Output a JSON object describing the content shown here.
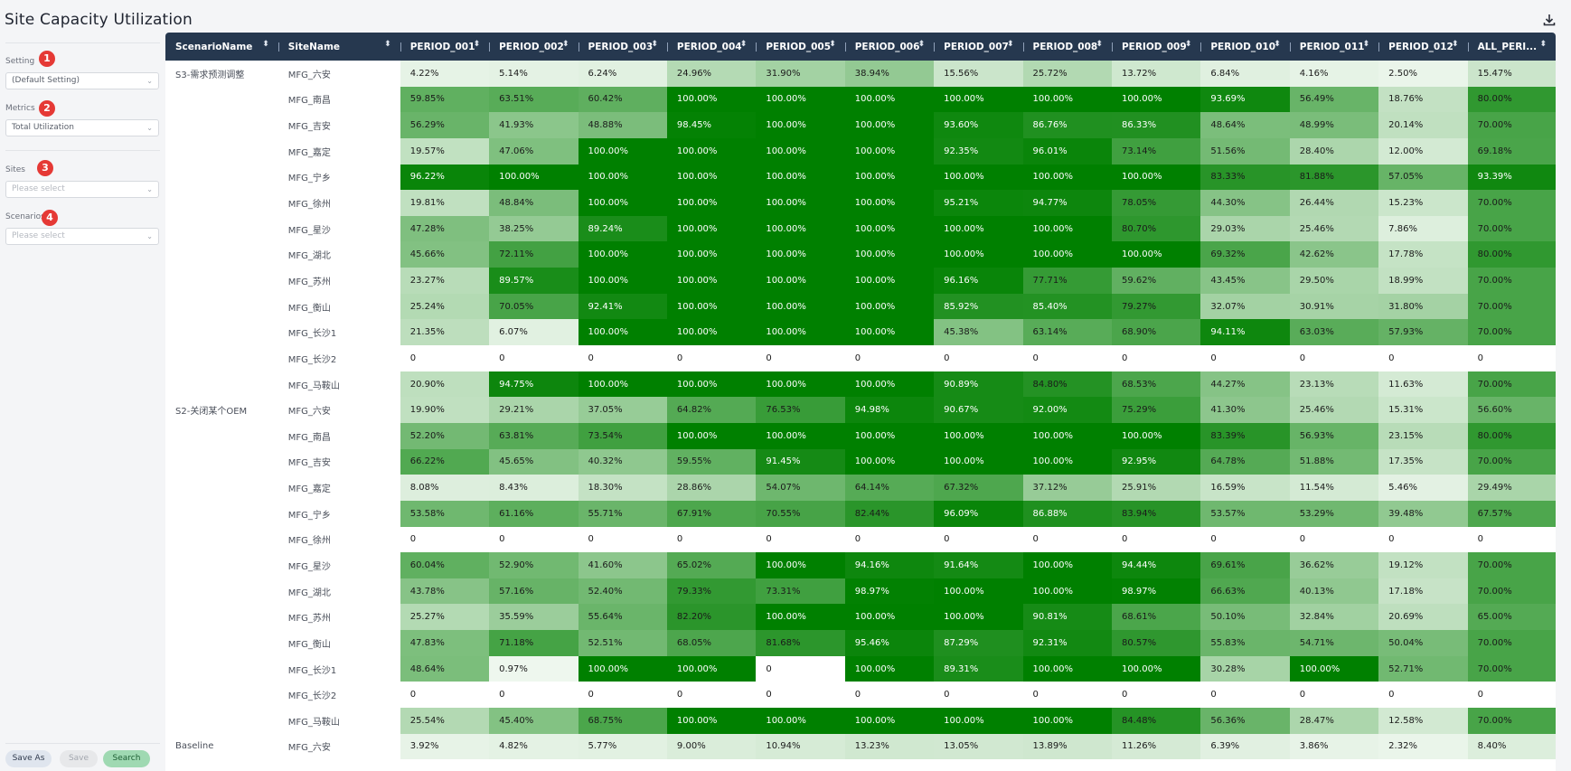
{
  "page": {
    "title": "Site Capacity Utilization",
    "download_icon": "download-icon"
  },
  "filters": [
    {
      "label": "Setting",
      "badge": "1",
      "value": "(Default Setting)",
      "placeholder": false
    },
    {
      "label": "Metrics",
      "badge": "2",
      "value": "Total Utilization",
      "placeholder": false
    },
    {
      "label": "Sites",
      "badge": "3",
      "value": "Please select",
      "placeholder": true
    },
    {
      "label": "Scenarios",
      "badge": "4",
      "value": "Please select",
      "placeholder": true
    }
  ],
  "buttons": {
    "save_as": "Save As",
    "save": "Save",
    "search": "Search"
  },
  "table": {
    "columns": [
      "ScenarioName",
      "SiteName",
      "PERIOD_001",
      "PERIOD_002",
      "PERIOD_003",
      "PERIOD_004",
      "PERIOD_005",
      "PERIOD_006",
      "PERIOD_007",
      "PERIOD_008",
      "PERIOD_009",
      "PERIOD_010",
      "PERIOD_011",
      "PERIOD_012",
      "ALL_PERI..."
    ],
    "rows": [
      {
        "scenario": "S3-需求预测调整",
        "site": "MFG_六安",
        "values": [
          "4.22%",
          "5.14%",
          "6.24%",
          "24.96%",
          "31.90%",
          "38.94%",
          "15.56%",
          "25.72%",
          "13.72%",
          "6.84%",
          "4.16%",
          "2.50%",
          "15.47%"
        ]
      },
      {
        "scenario": "",
        "site": "MFG_南昌",
        "values": [
          "59.85%",
          "63.51%",
          "60.42%",
          "100.00%",
          "100.00%",
          "100.00%",
          "100.00%",
          "100.00%",
          "100.00%",
          "93.69%",
          "56.49%",
          "18.76%",
          "80.00%"
        ]
      },
      {
        "scenario": "",
        "site": "MFG_吉安",
        "values": [
          "56.29%",
          "41.93%",
          "48.88%",
          "98.45%",
          "100.00%",
          "100.00%",
          "93.60%",
          "86.76%",
          "86.33%",
          "48.64%",
          "48.99%",
          "20.14%",
          "70.00%"
        ]
      },
      {
        "scenario": "",
        "site": "MFG_嘉定",
        "values": [
          "19.57%",
          "47.06%",
          "100.00%",
          "100.00%",
          "100.00%",
          "100.00%",
          "92.35%",
          "96.01%",
          "73.14%",
          "51.56%",
          "28.40%",
          "12.00%",
          "69.18%"
        ]
      },
      {
        "scenario": "",
        "site": "MFG_宁乡",
        "values": [
          "96.22%",
          "100.00%",
          "100.00%",
          "100.00%",
          "100.00%",
          "100.00%",
          "100.00%",
          "100.00%",
          "100.00%",
          "83.33%",
          "81.88%",
          "57.05%",
          "93.39%"
        ]
      },
      {
        "scenario": "",
        "site": "MFG_徐州",
        "values": [
          "19.81%",
          "48.84%",
          "100.00%",
          "100.00%",
          "100.00%",
          "100.00%",
          "95.21%",
          "94.77%",
          "78.05%",
          "44.30%",
          "26.44%",
          "15.23%",
          "70.00%"
        ]
      },
      {
        "scenario": "",
        "site": "MFG_星沙",
        "values": [
          "47.28%",
          "38.25%",
          "89.24%",
          "100.00%",
          "100.00%",
          "100.00%",
          "100.00%",
          "100.00%",
          "80.70%",
          "29.03%",
          "25.46%",
          "7.86%",
          "70.00%"
        ]
      },
      {
        "scenario": "",
        "site": "MFG_湖北",
        "values": [
          "45.66%",
          "72.11%",
          "100.00%",
          "100.00%",
          "100.00%",
          "100.00%",
          "100.00%",
          "100.00%",
          "100.00%",
          "69.32%",
          "42.62%",
          "17.78%",
          "80.00%"
        ]
      },
      {
        "scenario": "",
        "site": "MFG_苏州",
        "values": [
          "23.27%",
          "89.57%",
          "100.00%",
          "100.00%",
          "100.00%",
          "100.00%",
          "96.16%",
          "77.71%",
          "59.62%",
          "43.45%",
          "29.50%",
          "18.99%",
          "70.00%"
        ]
      },
      {
        "scenario": "",
        "site": "MFG_衡山",
        "values": [
          "25.24%",
          "70.05%",
          "92.41%",
          "100.00%",
          "100.00%",
          "100.00%",
          "85.92%",
          "85.40%",
          "79.27%",
          "32.07%",
          "30.91%",
          "31.80%",
          "70.00%"
        ]
      },
      {
        "scenario": "",
        "site": "MFG_长沙1",
        "values": [
          "21.35%",
          "6.07%",
          "100.00%",
          "100.00%",
          "100.00%",
          "100.00%",
          "45.38%",
          "63.14%",
          "68.90%",
          "94.11%",
          "63.03%",
          "57.93%",
          "70.00%"
        ]
      },
      {
        "scenario": "",
        "site": "MFG_长沙2",
        "values": [
          "0",
          "0",
          "0",
          "0",
          "0",
          "0",
          "0",
          "0",
          "0",
          "0",
          "0",
          "0",
          "0"
        ]
      },
      {
        "scenario": "",
        "site": "MFG_马鞍山",
        "values": [
          "20.90%",
          "94.75%",
          "100.00%",
          "100.00%",
          "100.00%",
          "100.00%",
          "90.89%",
          "84.80%",
          "68.53%",
          "44.27%",
          "23.13%",
          "11.63%",
          "70.00%"
        ]
      },
      {
        "scenario": "S2-关闭某个OEM",
        "site": "MFG_六安",
        "values": [
          "19.90%",
          "29.21%",
          "37.05%",
          "64.82%",
          "76.53%",
          "94.98%",
          "90.67%",
          "92.00%",
          "75.29%",
          "41.30%",
          "25.46%",
          "15.31%",
          "56.60%"
        ]
      },
      {
        "scenario": "",
        "site": "MFG_南昌",
        "values": [
          "52.20%",
          "63.81%",
          "73.54%",
          "100.00%",
          "100.00%",
          "100.00%",
          "100.00%",
          "100.00%",
          "100.00%",
          "83.39%",
          "56.93%",
          "23.15%",
          "80.00%"
        ]
      },
      {
        "scenario": "",
        "site": "MFG_吉安",
        "values": [
          "66.22%",
          "45.65%",
          "40.32%",
          "59.55%",
          "91.45%",
          "100.00%",
          "100.00%",
          "100.00%",
          "92.95%",
          "64.78%",
          "51.88%",
          "17.35%",
          "70.00%"
        ]
      },
      {
        "scenario": "",
        "site": "MFG_嘉定",
        "values": [
          "8.08%",
          "8.43%",
          "18.30%",
          "28.86%",
          "54.07%",
          "64.14%",
          "67.32%",
          "37.12%",
          "25.91%",
          "16.59%",
          "11.54%",
          "5.46%",
          "29.49%"
        ]
      },
      {
        "scenario": "",
        "site": "MFG_宁乡",
        "values": [
          "53.58%",
          "61.16%",
          "55.71%",
          "67.91%",
          "70.55%",
          "82.44%",
          "96.09%",
          "86.88%",
          "83.94%",
          "53.57%",
          "53.29%",
          "39.48%",
          "67.57%"
        ]
      },
      {
        "scenario": "",
        "site": "MFG_徐州",
        "values": [
          "0",
          "0",
          "0",
          "0",
          "0",
          "0",
          "0",
          "0",
          "0",
          "0",
          "0",
          "0",
          "0"
        ]
      },
      {
        "scenario": "",
        "site": "MFG_星沙",
        "values": [
          "60.04%",
          "52.90%",
          "41.60%",
          "65.02%",
          "100.00%",
          "94.16%",
          "91.64%",
          "100.00%",
          "94.44%",
          "69.61%",
          "36.62%",
          "19.12%",
          "70.00%"
        ]
      },
      {
        "scenario": "",
        "site": "MFG_湖北",
        "values": [
          "43.78%",
          "57.16%",
          "52.40%",
          "79.33%",
          "73.31%",
          "98.97%",
          "100.00%",
          "100.00%",
          "98.97%",
          "66.63%",
          "40.13%",
          "17.18%",
          "70.00%"
        ]
      },
      {
        "scenario": "",
        "site": "MFG_苏州",
        "values": [
          "25.27%",
          "35.59%",
          "55.64%",
          "82.20%",
          "100.00%",
          "100.00%",
          "100.00%",
          "90.81%",
          "68.61%",
          "50.10%",
          "32.84%",
          "20.69%",
          "65.00%"
        ]
      },
      {
        "scenario": "",
        "site": "MFG_衡山",
        "values": [
          "47.83%",
          "71.18%",
          "52.51%",
          "68.05%",
          "81.68%",
          "95.46%",
          "87.29%",
          "92.31%",
          "80.57%",
          "55.83%",
          "54.71%",
          "50.04%",
          "70.00%"
        ]
      },
      {
        "scenario": "",
        "site": "MFG_长沙1",
        "values": [
          "48.64%",
          "0.97%",
          "100.00%",
          "100.00%",
          "0",
          "100.00%",
          "89.31%",
          "100.00%",
          "100.00%",
          "30.28%",
          "100.00%",
          "52.71%",
          "70.00%"
        ]
      },
      {
        "scenario": "",
        "site": "MFG_长沙2",
        "values": [
          "0",
          "0",
          "0",
          "0",
          "0",
          "0",
          "0",
          "0",
          "0",
          "0",
          "0",
          "0",
          "0"
        ]
      },
      {
        "scenario": "",
        "site": "MFG_马鞍山",
        "values": [
          "25.54%",
          "45.40%",
          "68.75%",
          "100.00%",
          "100.00%",
          "100.00%",
          "100.00%",
          "100.00%",
          "84.48%",
          "56.36%",
          "28.47%",
          "12.58%",
          "70.00%"
        ]
      },
      {
        "scenario": "Baseline",
        "site": "MFG_六安",
        "values": [
          "3.92%",
          "4.82%",
          "5.77%",
          "9.00%",
          "10.94%",
          "13.23%",
          "13.05%",
          "13.89%",
          "11.26%",
          "6.39%",
          "3.86%",
          "2.32%",
          "8.40%"
        ]
      }
    ]
  }
}
